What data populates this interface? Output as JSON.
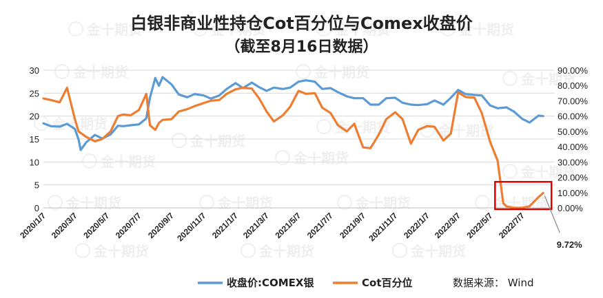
{
  "chart_data": {
    "type": "line",
    "title": "白银非商业性持仓Cot百分位与Comex收盘价",
    "subtitle": "（截至8月16日数据）",
    "ylim_left": [
      0,
      30
    ],
    "yticks_left": [
      "0",
      "5",
      "10",
      "15",
      "20",
      "25",
      "30"
    ],
    "ylim_right": [
      0,
      90
    ],
    "yticks_right": [
      "0.00%",
      "10.00%",
      "20.00%",
      "30.00%",
      "40.00%",
      "50.00%",
      "60.00%",
      "70.00%",
      "80.00%",
      "90.00%"
    ],
    "x_ticks": [
      "2020/1/7",
      "2020/3/7",
      "2020/5/7",
      "2020/7/7",
      "2020/9/7",
      "2020/11/7",
      "2021/1/7",
      "2021/3/7",
      "2021/5/7",
      "2021/7/7",
      "2021/9/7",
      "2021/11/7",
      "2022/1/7",
      "2022/3/7",
      "2022/5/7",
      "2022/7/7"
    ],
    "x_range": [
      "2020-01-07",
      "2022-08-16"
    ],
    "grid": true,
    "legend_position": "bottom",
    "series": [
      {
        "name": "收盘价:COMEX银",
        "axis": "left",
        "color": "#5b9bd5",
        "points": [
          [
            "2020-01-07",
            18.4
          ],
          [
            "2020-01-21",
            17.8
          ],
          [
            "2020-02-07",
            17.7
          ],
          [
            "2020-02-21",
            18.3
          ],
          [
            "2020-03-07",
            17.2
          ],
          [
            "2020-03-14",
            14.9
          ],
          [
            "2020-03-18",
            12.6
          ],
          [
            "2020-03-28",
            14.2
          ],
          [
            "2020-04-14",
            15.9
          ],
          [
            "2020-04-28",
            15.1
          ],
          [
            "2020-05-14",
            16.0
          ],
          [
            "2020-05-28",
            17.9
          ],
          [
            "2020-06-07",
            17.8
          ],
          [
            "2020-06-21",
            18.0
          ],
          [
            "2020-07-07",
            18.2
          ],
          [
            "2020-07-21",
            19.5
          ],
          [
            "2020-07-28",
            24.0
          ],
          [
            "2020-08-07",
            28.3
          ],
          [
            "2020-08-14",
            26.6
          ],
          [
            "2020-08-21",
            28.5
          ],
          [
            "2020-09-07",
            26.9
          ],
          [
            "2020-09-21",
            24.7
          ],
          [
            "2020-10-07",
            24.1
          ],
          [
            "2020-10-21",
            24.8
          ],
          [
            "2020-11-07",
            24.5
          ],
          [
            "2020-11-21",
            23.8
          ],
          [
            "2020-12-07",
            24.5
          ],
          [
            "2020-12-21",
            25.9
          ],
          [
            "2021-01-07",
            27.2
          ],
          [
            "2021-01-21",
            26.1
          ],
          [
            "2021-02-07",
            27.3
          ],
          [
            "2021-02-21",
            26.3
          ],
          [
            "2021-03-07",
            25.5
          ],
          [
            "2021-03-21",
            26.2
          ],
          [
            "2021-04-07",
            25.9
          ],
          [
            "2021-04-21",
            26.2
          ],
          [
            "2021-05-07",
            27.5
          ],
          [
            "2021-05-21",
            27.8
          ],
          [
            "2021-06-07",
            27.5
          ],
          [
            "2021-06-21",
            25.9
          ],
          [
            "2021-07-07",
            26.1
          ],
          [
            "2021-07-21",
            25.2
          ],
          [
            "2021-08-07",
            24.3
          ],
          [
            "2021-08-21",
            23.9
          ],
          [
            "2021-09-07",
            23.9
          ],
          [
            "2021-09-21",
            22.5
          ],
          [
            "2021-10-07",
            22.5
          ],
          [
            "2021-10-21",
            23.9
          ],
          [
            "2021-11-07",
            24.0
          ],
          [
            "2021-11-21",
            22.9
          ],
          [
            "2021-12-07",
            22.5
          ],
          [
            "2021-12-21",
            22.4
          ],
          [
            "2022-01-07",
            22.6
          ],
          [
            "2022-01-21",
            23.4
          ],
          [
            "2022-02-07",
            22.5
          ],
          [
            "2022-02-21",
            24.0
          ],
          [
            "2022-03-07",
            25.7
          ],
          [
            "2022-03-21",
            24.8
          ],
          [
            "2022-04-07",
            24.6
          ],
          [
            "2022-04-21",
            24.5
          ],
          [
            "2022-05-07",
            22.3
          ],
          [
            "2022-05-21",
            21.7
          ],
          [
            "2022-06-07",
            21.9
          ],
          [
            "2022-06-21",
            21.0
          ],
          [
            "2022-07-07",
            19.4
          ],
          [
            "2022-07-21",
            18.6
          ],
          [
            "2022-08-07",
            20.1
          ],
          [
            "2022-08-16",
            20.0
          ]
        ]
      },
      {
        "name": "Cot百分位",
        "axis": "right",
        "color": "#ed7d31",
        "points": [
          [
            "2020-01-07",
            71.5
          ],
          [
            "2020-01-21",
            70.5
          ],
          [
            "2020-02-07",
            69.0
          ],
          [
            "2020-02-21",
            78.5
          ],
          [
            "2020-03-07",
            58.0
          ],
          [
            "2020-03-14",
            50.0
          ],
          [
            "2020-03-28",
            46.5
          ],
          [
            "2020-04-14",
            43.5
          ],
          [
            "2020-04-28",
            45.0
          ],
          [
            "2020-05-14",
            50.0
          ],
          [
            "2020-05-28",
            60.0
          ],
          [
            "2020-06-07",
            61.0
          ],
          [
            "2020-06-21",
            60.5
          ],
          [
            "2020-07-07",
            64.0
          ],
          [
            "2020-07-21",
            74.5
          ],
          [
            "2020-07-28",
            54.0
          ],
          [
            "2020-08-07",
            51.0
          ],
          [
            "2020-08-14",
            55.5
          ],
          [
            "2020-08-21",
            57.5
          ],
          [
            "2020-09-07",
            58.0
          ],
          [
            "2020-09-21",
            63.0
          ],
          [
            "2020-10-07",
            64.5
          ],
          [
            "2020-10-21",
            66.5
          ],
          [
            "2020-11-07",
            68.5
          ],
          [
            "2020-11-21",
            70.0
          ],
          [
            "2020-12-07",
            70.5
          ],
          [
            "2020-12-21",
            74.5
          ],
          [
            "2021-01-07",
            77.5
          ],
          [
            "2021-01-21",
            78.5
          ],
          [
            "2021-02-07",
            78.0
          ],
          [
            "2021-02-21",
            71.5
          ],
          [
            "2021-03-07",
            63.0
          ],
          [
            "2021-03-21",
            56.5
          ],
          [
            "2021-04-07",
            60.5
          ],
          [
            "2021-04-21",
            66.0
          ],
          [
            "2021-05-07",
            76.5
          ],
          [
            "2021-05-21",
            74.5
          ],
          [
            "2021-06-07",
            75.0
          ],
          [
            "2021-06-21",
            65.5
          ],
          [
            "2021-07-07",
            62.0
          ],
          [
            "2021-07-21",
            54.0
          ],
          [
            "2021-08-07",
            50.0
          ],
          [
            "2021-08-21",
            55.0
          ],
          [
            "2021-09-07",
            39.5
          ],
          [
            "2021-09-21",
            39.0
          ],
          [
            "2021-10-07",
            48.0
          ],
          [
            "2021-10-21",
            58.0
          ],
          [
            "2021-11-07",
            62.5
          ],
          [
            "2021-11-21",
            58.0
          ],
          [
            "2021-12-07",
            42.0
          ],
          [
            "2021-12-21",
            51.0
          ],
          [
            "2022-01-07",
            53.5
          ],
          [
            "2022-01-21",
            53.0
          ],
          [
            "2022-02-07",
            44.0
          ],
          [
            "2022-02-21",
            48.5
          ],
          [
            "2022-03-07",
            75.5
          ],
          [
            "2022-03-21",
            72.5
          ],
          [
            "2022-04-07",
            72.0
          ],
          [
            "2022-04-21",
            62.0
          ],
          [
            "2022-05-07",
            43.0
          ],
          [
            "2022-05-21",
            31.0
          ],
          [
            "2022-06-01",
            3.0
          ],
          [
            "2022-06-07",
            1.0
          ],
          [
            "2022-06-21",
            0.0
          ],
          [
            "2022-07-07",
            0.0
          ],
          [
            "2022-07-21",
            1.0
          ],
          [
            "2022-08-07",
            7.0
          ],
          [
            "2022-08-16",
            9.72
          ]
        ]
      }
    ],
    "annotation": {
      "text": "9.72%",
      "date": "2022-08-16",
      "value": 9.72,
      "axis": "right"
    },
    "highlight_box": {
      "x_start": "2022-06-01",
      "x_end": "2022-08-16",
      "y_min": 0,
      "y_max": 17,
      "axis": "right",
      "color": "#e00000"
    }
  },
  "watermark": {
    "text": "金十期货"
  },
  "source": {
    "text": "数据来源：  Wind"
  }
}
